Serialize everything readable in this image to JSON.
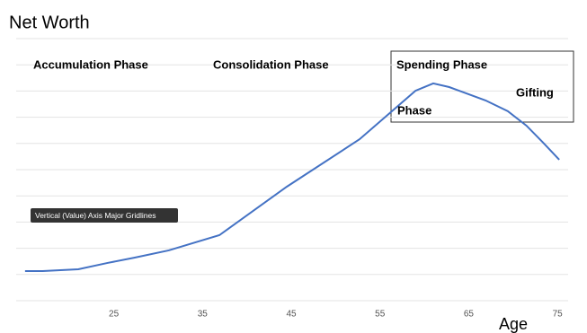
{
  "chart_data": {
    "type": "line",
    "title": "Net Worth",
    "x_label": "Age",
    "x": [
      15,
      17,
      21,
      24.3,
      27.3,
      31.2,
      36.9,
      44.5,
      52.7,
      59,
      61,
      62.8,
      66.9,
      69.4,
      71.5,
      73.3,
      75.2
    ],
    "series": [
      {
        "name": "Net Worth",
        "color": "#4472c4",
        "values": [
          1.13,
          1.13,
          1.2,
          1.44,
          1.64,
          1.92,
          2.5,
          4.35,
          6.16,
          8.01,
          8.29,
          8.15,
          7.64,
          7.23,
          6.68,
          6.06,
          5.38
        ]
      }
    ],
    "xlim": [
      14,
      76.2
    ],
    "xticks": [
      25,
      35,
      45,
      55,
      65,
      75
    ],
    "ylim": [
      0,
      10
    ],
    "yticks": [
      0,
      1,
      2,
      3,
      4,
      5,
      6,
      7,
      8,
      9,
      10
    ],
    "grid": true,
    "annotations": [
      "Accumulation Phase",
      "Consolidation Phase",
      "Spending Phase",
      "Gifting",
      "Phase"
    ],
    "tooltip": "Vertical (Value) Axis Major Gridlines"
  }
}
